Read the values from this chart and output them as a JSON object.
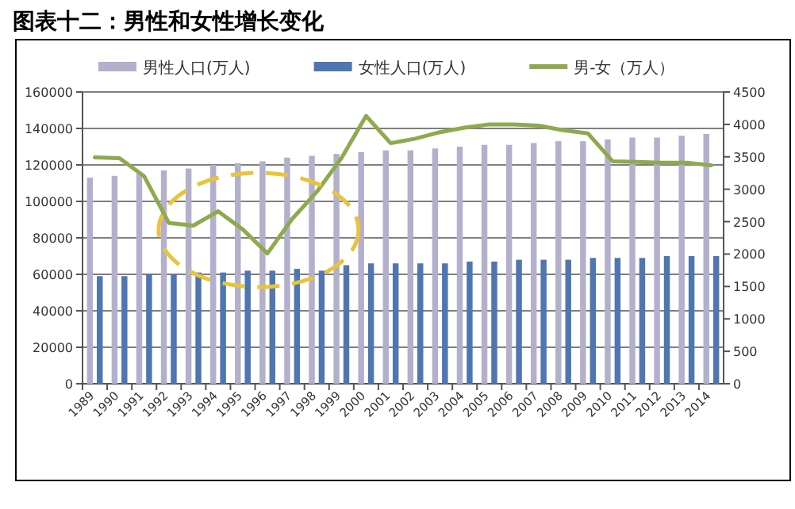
{
  "chart_data": {
    "type": "bar",
    "title": "图表十二：男性和女性增长变化",
    "categories": [
      "1989",
      "1990",
      "1991",
      "1992",
      "1993",
      "1994",
      "1995",
      "1996",
      "1997",
      "1998",
      "1999",
      "2000",
      "2001",
      "2002",
      "2003",
      "2004",
      "2005",
      "2006",
      "2007",
      "2008",
      "2009",
      "2010",
      "2011",
      "2012",
      "2013",
      "2014"
    ],
    "series": [
      {
        "name": "男性人口(万人)",
        "color": "#b3b0cc",
        "values": [
          113000,
          114000,
          116000,
          117000,
          118000,
          120000,
          121000,
          122000,
          124000,
          125000,
          126000,
          127000,
          128000,
          128000,
          129000,
          130000,
          131000,
          131000,
          132000,
          133000,
          133000,
          134000,
          135000,
          135000,
          136000,
          137000
        ]
      },
      {
        "name": "女性人口(万人)",
        "color": "#4f76b0",
        "values": [
          59000,
          59000,
          60000,
          60000,
          61000,
          61000,
          62000,
          62000,
          63000,
          62000,
          65000,
          66000,
          66000,
          66000,
          66000,
          67000,
          67000,
          68000,
          68000,
          68000,
          69000,
          69000,
          69000,
          70000,
          70000,
          70000
        ]
      },
      {
        "name": "男-女（万人）",
        "type": "line",
        "axis": "y2",
        "color": "#8faa4e",
        "values": [
          3490,
          3480,
          3200,
          2480,
          2440,
          2660,
          2380,
          2010,
          2540,
          2960,
          3480,
          4130,
          3710,
          3780,
          3880,
          3950,
          4000,
          4000,
          3980,
          3910,
          3860,
          3430,
          3420,
          3410,
          3410,
          3370
        ]
      }
    ],
    "ylim": [
      0,
      160000
    ],
    "yticks": [
      0,
      20000,
      40000,
      60000,
      80000,
      100000,
      120000,
      140000,
      160000
    ],
    "y2lim": [
      0,
      4500
    ],
    "y2ticks": [
      0,
      500,
      1000,
      1500,
      2000,
      2500,
      3000,
      3500,
      4000,
      4500
    ],
    "grid": "y",
    "legend": "top"
  }
}
